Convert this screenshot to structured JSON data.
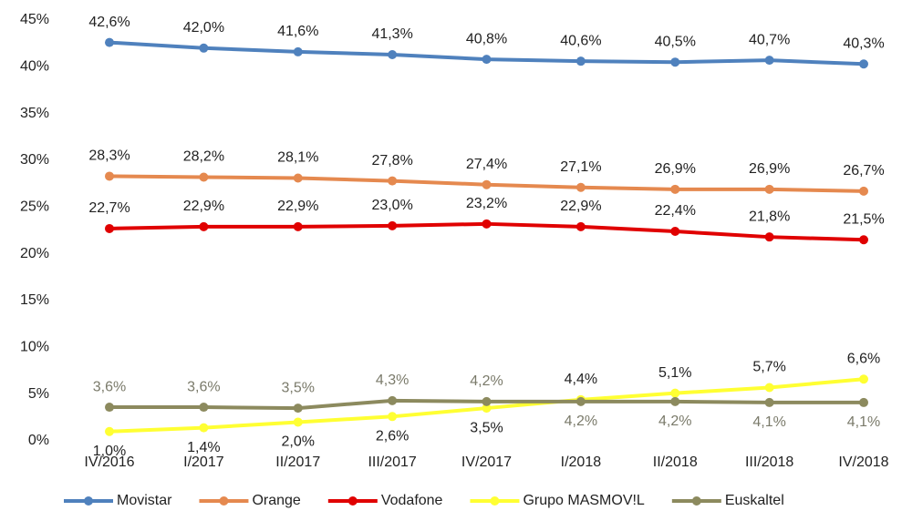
{
  "chart_data": {
    "type": "line",
    "categories": [
      "IV/2016",
      "I/2017",
      "II/2017",
      "III/2017",
      "IV/2017",
      "I/2018",
      "II/2018",
      "III/2018",
      "IV/2018"
    ],
    "series": [
      {
        "name": "Movistar",
        "color": "#4f81bd",
        "values": [
          42.6,
          42.0,
          41.6,
          41.3,
          40.8,
          40.6,
          40.5,
          40.7,
          40.3
        ],
        "value_labels": [
          "42,6%",
          "42,0%",
          "41,6%",
          "41,3%",
          "40,8%",
          "40,6%",
          "40,5%",
          "40,7%",
          "40,3%"
        ]
      },
      {
        "name": "Orange",
        "color": "#e5894f",
        "values": [
          28.3,
          28.2,
          28.1,
          27.8,
          27.4,
          27.1,
          26.9,
          26.9,
          26.7
        ],
        "value_labels": [
          "28,3%",
          "28,2%",
          "28,1%",
          "27,8%",
          "27,4%",
          "27,1%",
          "26,9%",
          "26,9%",
          "26,7%"
        ]
      },
      {
        "name": "Vodafone",
        "color": "#e00000",
        "values": [
          22.7,
          22.9,
          22.9,
          23.0,
          23.2,
          22.9,
          22.4,
          21.8,
          21.5
        ],
        "value_labels": [
          "22,7%",
          "22,9%",
          "22,9%",
          "23,0%",
          "23,2%",
          "22,9%",
          "22,4%",
          "21,8%",
          "21,5%"
        ]
      },
      {
        "name": "Grupo MASMOV!L",
        "color": "#ffff33",
        "values": [
          1.0,
          1.4,
          2.0,
          2.6,
          3.5,
          4.4,
          5.1,
          5.7,
          6.6
        ],
        "value_labels": [
          "1,0%",
          "1,4%",
          "2,0%",
          "2,6%",
          "3,5%",
          "4,4%",
          "5,1%",
          "5,7%",
          "6,6%"
        ]
      },
      {
        "name": "Euskaltel",
        "color": "#8c8a5e",
        "values": [
          3.6,
          3.6,
          3.5,
          4.3,
          4.2,
          4.2,
          4.2,
          4.1,
          4.1
        ],
        "value_labels": [
          "3,6%",
          "3,6%",
          "3,5%",
          "4,3%",
          "4,2%",
          "4,2%",
          "4,2%",
          "4,1%",
          "4,1%"
        ]
      }
    ],
    "ylim": [
      0,
      45
    ],
    "yticks": [
      {
        "value": 0,
        "label": "0%"
      },
      {
        "value": 5,
        "label": "5%"
      },
      {
        "value": 10,
        "label": "10%"
      },
      {
        "value": 15,
        "label": "15%"
      },
      {
        "value": 20,
        "label": "20%"
      },
      {
        "value": 25,
        "label": "25%"
      },
      {
        "value": 30,
        "label": "30%"
      },
      {
        "value": 35,
        "label": "35%"
      },
      {
        "value": 40,
        "label": "40%"
      },
      {
        "value": 45,
        "label": "45%"
      }
    ],
    "grid": false,
    "legend": "bottom"
  }
}
